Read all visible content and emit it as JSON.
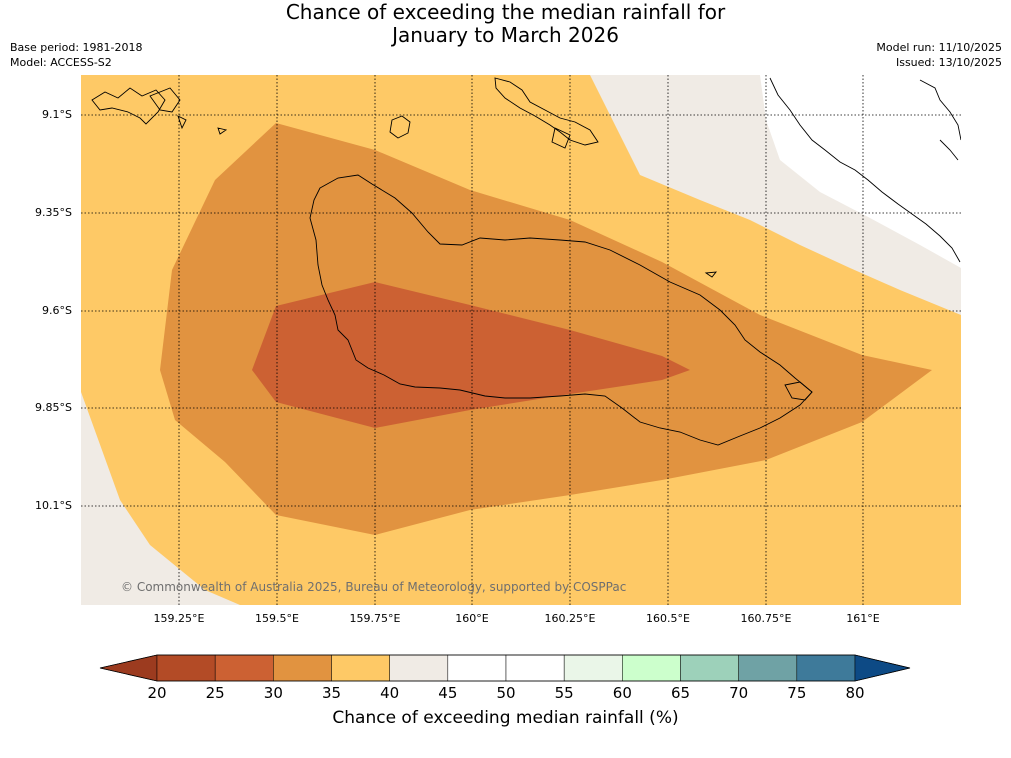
{
  "title": {
    "line1": "Chance of exceeding the median rainfall for",
    "line2": "January to March 2026"
  },
  "meta": {
    "base_period": "Base period: 1981-2018",
    "model": "Model: ACCESS-S2",
    "model_run": "Model run: 11/10/2025",
    "issued": "Issued: 13/10/2025"
  },
  "map": {
    "copyright": "© Commonwealth of Australia 2025, Bureau of Meteorology, supported by COSPPac",
    "lat_labels": [
      "9.1°S",
      "9.35°S",
      "9.6°S",
      "9.85°S",
      "10.1°S"
    ],
    "lon_labels": [
      "159.25°E",
      "159.5°E",
      "159.75°E",
      "160°E",
      "160.25°E",
      "160.5°E",
      "160.75°E",
      "161°E"
    ],
    "colors": {
      "land_outline": "#000000",
      "grid": "#000000"
    }
  },
  "colorbar": {
    "title": "Chance of exceeding median rainfall (%)",
    "ticks": [
      "20",
      "25",
      "30",
      "35",
      "40",
      "45",
      "50",
      "55",
      "60",
      "65",
      "70",
      "75",
      "80"
    ],
    "colors": [
      "#b34b26",
      "#cc6133",
      "#e19340",
      "#fec966",
      "#f0ebe5",
      "#ffffff",
      "#ffffff",
      "#eaf6e8",
      "#ccffcc",
      "#9dd1ba",
      "#6fa2a5",
      "#3e7a9a"
    ],
    "under_color": "#9c3b1f",
    "over_color": "#0d4a85"
  }
}
